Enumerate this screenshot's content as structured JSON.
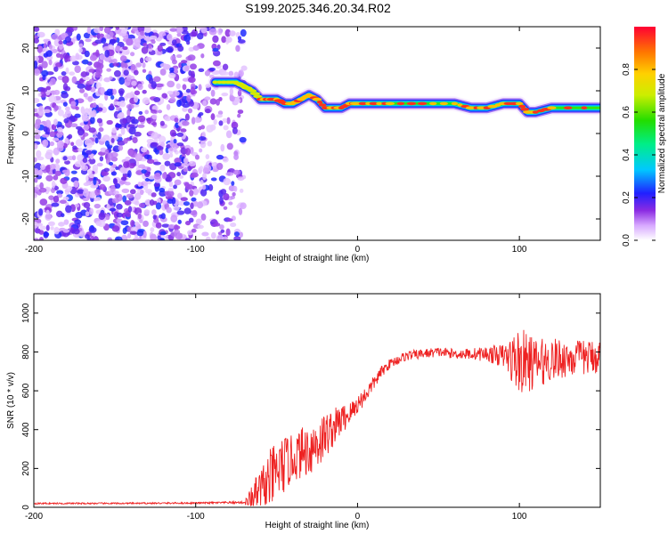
{
  "title": "S199.2025.346.20.34.R02",
  "chart_data": [
    {
      "type": "heatmap",
      "xlabel": "Height of straight line (km)",
      "ylabel": "Frequency (Hz)",
      "xlim": [
        -200,
        150
      ],
      "ylim": [
        -25,
        25
      ],
      "xticks": [
        -200,
        -100,
        0,
        100
      ],
      "yticks": [
        -20,
        -10,
        0,
        10,
        20
      ],
      "colorbar": {
        "label": "Normalized spectral amplitude",
        "range": [
          0,
          1
        ],
        "ticks": [
          0.0,
          0.2,
          0.4,
          0.6,
          0.8
        ]
      },
      "noise_region": {
        "x_range": [
          -200,
          -80
        ],
        "freq_range": [
          -25,
          25
        ],
        "amplitude_range": [
          0.0,
          0.2
        ]
      },
      "ridge": [
        [
          -88,
          12
        ],
        [
          -80,
          12
        ],
        [
          -75,
          12
        ],
        [
          -70,
          11
        ],
        [
          -65,
          10
        ],
        [
          -60,
          8
        ],
        [
          -55,
          8
        ],
        [
          -50,
          8
        ],
        [
          -45,
          7
        ],
        [
          -40,
          7
        ],
        [
          -35,
          8
        ],
        [
          -30,
          9
        ],
        [
          -25,
          8
        ],
        [
          -20,
          6
        ],
        [
          -15,
          6
        ],
        [
          -10,
          6
        ],
        [
          -5,
          7
        ],
        [
          0,
          7
        ],
        [
          10,
          7
        ],
        [
          20,
          7
        ],
        [
          40,
          7
        ],
        [
          60,
          7
        ],
        [
          70,
          6
        ],
        [
          80,
          6
        ],
        [
          90,
          7
        ],
        [
          100,
          7
        ],
        [
          105,
          5
        ],
        [
          110,
          5
        ],
        [
          120,
          6
        ],
        [
          150,
          6
        ]
      ]
    },
    {
      "type": "line",
      "xlabel": "Height of straight line (km)",
      "ylabel": "SNR (10 * v/v)",
      "xlim": [
        -200,
        150
      ],
      "ylim": [
        0,
        1100
      ],
      "xticks": [
        -200,
        -100,
        0,
        100
      ],
      "yticks": [
        0,
        200,
        400,
        600,
        800,
        1000
      ],
      "series": [
        {
          "name": "SNR",
          "color": "#ee2222",
          "x": [
            -200,
            -150,
            -100,
            -70,
            -65,
            -60,
            -55,
            -50,
            -45,
            -40,
            -35,
            -30,
            -25,
            -20,
            -15,
            -10,
            -5,
            0,
            5,
            10,
            15,
            20,
            25,
            30,
            40,
            50,
            60,
            70,
            80,
            90,
            100,
            110,
            120,
            130,
            140,
            150
          ],
          "y": [
            20,
            20,
            22,
            25,
            40,
            80,
            130,
            180,
            220,
            250,
            280,
            300,
            330,
            370,
            410,
            450,
            480,
            530,
            580,
            640,
            700,
            740,
            760,
            780,
            790,
            800,
            790,
            790,
            790,
            780,
            750,
            740,
            760,
            770,
            770,
            780
          ],
          "noise": [
            4,
            4,
            4,
            6,
            80,
            120,
            160,
            160,
            150,
            120,
            130,
            140,
            150,
            120,
            100,
            80,
            60,
            50,
            45,
            35,
            30,
            25,
            25,
            25,
            25,
            25,
            25,
            30,
            40,
            60,
            180,
            130,
            110,
            100,
            90,
            90
          ]
        }
      ]
    }
  ]
}
